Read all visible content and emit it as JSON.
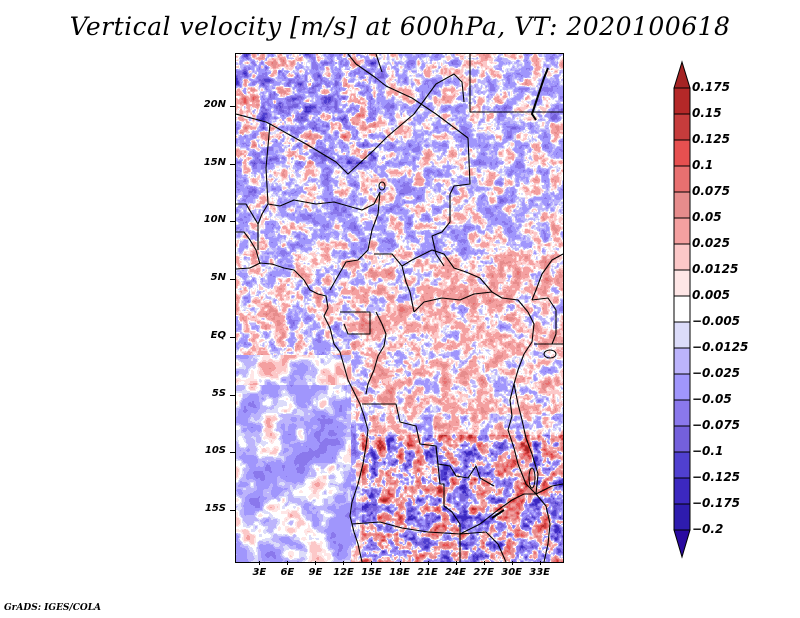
{
  "title": "Vertical velocity [m/s] at 600hPa, VT: 2020100618",
  "credit": "GrADS: IGES/COLA",
  "map": {
    "variable": "Vertical velocity",
    "units": "m/s",
    "level": "600hPa",
    "valid_time": "2020100618",
    "lon_range": [
      0.5,
      35.5
    ],
    "lat_range": [
      -19.5,
      24.5
    ],
    "lat_ticks": [
      {
        "value": 20,
        "label": "20N"
      },
      {
        "value": 15,
        "label": "15N"
      },
      {
        "value": 10,
        "label": "10N"
      },
      {
        "value": 5,
        "label": "5N"
      },
      {
        "value": 0,
        "label": "EQ"
      },
      {
        "value": -5,
        "label": "5S"
      },
      {
        "value": -10,
        "label": "10S"
      },
      {
        "value": -15,
        "label": "15S"
      }
    ],
    "lon_ticks": [
      {
        "value": 3,
        "label": "3E"
      },
      {
        "value": 6,
        "label": "6E"
      },
      {
        "value": 9,
        "label": "9E"
      },
      {
        "value": 12,
        "label": "12E"
      },
      {
        "value": 15,
        "label": "15E"
      },
      {
        "value": 18,
        "label": "18E"
      },
      {
        "value": 21,
        "label": "21E"
      },
      {
        "value": 24,
        "label": "24E"
      },
      {
        "value": 27,
        "label": "27E"
      },
      {
        "value": 30,
        "label": "30E"
      },
      {
        "value": 33,
        "label": "33E"
      }
    ]
  },
  "colorbar": {
    "orientation": "vertical",
    "position": "right",
    "top_arrow_color": "#a52424",
    "bottom_arrow_color": "#2a0aa0",
    "levels": [
      {
        "label": "0.175",
        "color": "#b42828"
      },
      {
        "label": "0.15",
        "color": "#c63c3c"
      },
      {
        "label": "0.125",
        "color": "#e65050"
      },
      {
        "label": "0.1",
        "color": "#e87070"
      },
      {
        "label": "0.075",
        "color": "#e68c8c"
      },
      {
        "label": "0.05",
        "color": "#f4a0a0"
      },
      {
        "label": "0.025",
        "color": "#fcc8c8"
      },
      {
        "label": "0.0125",
        "color": "#fee6e6"
      },
      {
        "label": "0.005",
        "color": "#ffffff"
      },
      {
        "label": "-0.005",
        "color": "#dcdcfa"
      },
      {
        "label": "-0.0125",
        "color": "#bcb4fc"
      },
      {
        "label": "-0.025",
        "color": "#a096fc"
      },
      {
        "label": "-0.05",
        "color": "#8a78ec"
      },
      {
        "label": "-0.075",
        "color": "#7460dc"
      },
      {
        "label": "-0.1",
        "color": "#5040d0"
      },
      {
        "label": "-0.125",
        "color": "#3c28c0"
      },
      {
        "label": "-0.175",
        "color": "#2e1cae"
      },
      {
        "label": "-0.2",
        "color": ""
      }
    ],
    "box_colors_top_to_bottom": [
      "#b42828",
      "#c63c3c",
      "#e65050",
      "#e87070",
      "#e68c8c",
      "#f4a0a0",
      "#fcc8c8",
      "#fee6e6",
      "#ffffff",
      "#dcdcfa",
      "#bcb4fc",
      "#a096fc",
      "#8a78ec",
      "#7460dc",
      "#5040d0",
      "#3c28c0",
      "#2e1cae"
    ]
  }
}
